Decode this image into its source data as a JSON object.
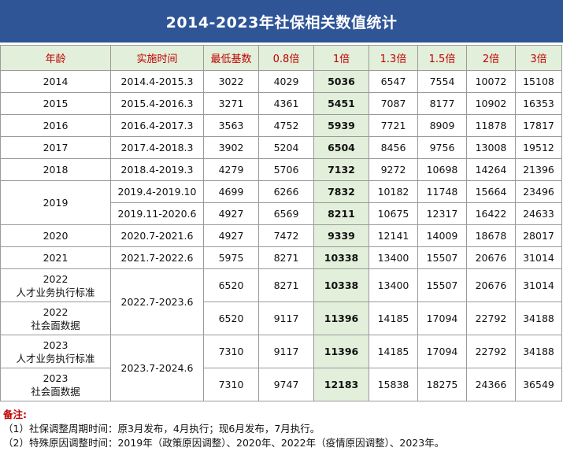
{
  "title": "2014-2023年社保相关数值统计",
  "headers": [
    "年龄",
    "实施时间",
    "最低基数",
    "0.8倍",
    "1倍",
    "1.3倍",
    "1.5倍",
    "2倍",
    "3倍"
  ],
  "rows": [
    {
      "year": "2014",
      "period": "2014.4-2015.3",
      "values": [
        "3022",
        "4029",
        "5036",
        "6547",
        "7554",
        "10072",
        "15108"
      ]
    },
    {
      "year": "2015",
      "period": "2015.4-2016.3",
      "values": [
        "3271",
        "4361",
        "5451",
        "7087",
        "8177",
        "10902",
        "16353"
      ]
    },
    {
      "year": "2016",
      "period": "2016.4-2017.3",
      "values": [
        "3563",
        "4752",
        "5939",
        "7721",
        "8909",
        "11878",
        "17817"
      ]
    },
    {
      "year": "2017",
      "period": "2017.4-2018.3",
      "values": [
        "3902",
        "5204",
        "6504",
        "8456",
        "9756",
        "13008",
        "19512"
      ]
    },
    {
      "year": "2018",
      "period": "2018.4-2019.3",
      "values": [
        "4279",
        "5706",
        "7132",
        "9272",
        "10698",
        "14264",
        "21396"
      ]
    },
    {
      "year": "2019",
      "period": "2019.4-2019.10",
      "values": [
        "4699",
        "6266",
        "7832",
        "10182",
        "11748",
        "15664",
        "23496"
      ]
    },
    {
      "year": "",
      "period": "2019.11-2020.6",
      "values": [
        "4927",
        "6569",
        "8211",
        "10675",
        "12317",
        "16422",
        "24633"
      ]
    },
    {
      "year": "2020",
      "period": "2020.7-2021.6",
      "values": [
        "4927",
        "7472",
        "9339",
        "12141",
        "14009",
        "18678",
        "28017"
      ]
    },
    {
      "year": "2021",
      "period": "2021.7-2022.6",
      "values": [
        "5975",
        "8271",
        "10338",
        "13400",
        "15507",
        "20676",
        "31014"
      ]
    },
    {
      "year": "2022",
      "year_sub": "人才业务执行标准",
      "period": "2022.7-2023.6",
      "values": [
        "6520",
        "8271",
        "10338",
        "13400",
        "15507",
        "20676",
        "31014"
      ]
    },
    {
      "year": "2022",
      "year_sub": "社会面数据",
      "period": "",
      "values": [
        "6520",
        "9117",
        "11396",
        "14185",
        "17094",
        "22792",
        "34188"
      ]
    },
    {
      "year": "2023",
      "year_sub": "人才业务执行标准",
      "period": "2023.7-2024.6",
      "values": [
        "7310",
        "9117",
        "11396",
        "14185",
        "17094",
        "22792",
        "34188"
      ]
    },
    {
      "year": "2023",
      "year_sub": "社会面数据",
      "period": "",
      "values": [
        "7310",
        "9747",
        "12183",
        "15838",
        "18275",
        "24366",
        "36549"
      ]
    }
  ],
  "notes": {
    "title": "备注:",
    "lines": [
      "（1）社保调整周期时间：原3月发布，4月执行；现6月发布，7月执行。",
      "（2）特殊原因调整时间：2019年（政策原因调整）、2020年、2022年（疫情原因调整）、2023年。"
    ]
  },
  "colors": {
    "title_bg": "#2f5597",
    "header_bg": "#e2efda",
    "header_text": "#c00000",
    "highlight_bg": "#e2efda"
  }
}
